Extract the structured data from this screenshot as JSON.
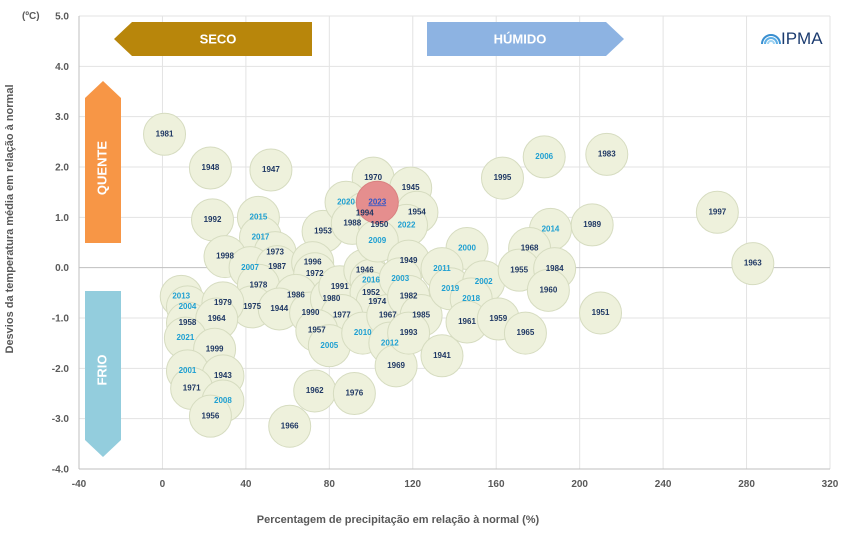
{
  "chart_data": {
    "type": "scatter",
    "xlabel": "Percentagem de precipitação em relação à normal (%)",
    "ylabel": "Desvios da temperatura média em relação à normal",
    "yunit": "(ºC)",
    "xlim": [
      -40,
      320
    ],
    "ylim": [
      -4.0,
      5.0
    ],
    "xticks": [
      "-40",
      "0",
      "40",
      "80",
      "120",
      "160",
      "200",
      "240",
      "280",
      "320"
    ],
    "yticks": [
      "5.0",
      "4.0",
      "3.0",
      "2.0",
      "1.0",
      "0.0",
      "-1.0",
      "-2.0",
      "-3.0",
      "-4.0"
    ],
    "grid": true,
    "colors": {
      "old_label": "#1f3864",
      "recent_label": "#1fa0d2",
      "highlight_label": "#2f55c8",
      "bubble": "#eef1dc",
      "highlight_bubble": "#e58e8e"
    },
    "points": [
      {
        "year": "1981",
        "x": 1,
        "y": 2.65
      },
      {
        "year": "1948",
        "x": 23,
        "y": 1.98
      },
      {
        "year": "1947",
        "x": 52,
        "y": 1.94
      },
      {
        "year": "1992",
        "x": 24,
        "y": 0.95
      },
      {
        "year": "2015",
        "x": 46,
        "y": 1.0
      },
      {
        "year": "2017",
        "x": 47,
        "y": 0.6
      },
      {
        "year": "1998",
        "x": 30,
        "y": 0.22
      },
      {
        "year": "1973",
        "x": 54,
        "y": 0.3
      },
      {
        "year": "2007",
        "x": 42,
        "y": 0.0
      },
      {
        "year": "1987",
        "x": 55,
        "y": 0.02
      },
      {
        "year": "1953",
        "x": 77,
        "y": 0.72
      },
      {
        "year": "1996",
        "x": 72,
        "y": 0.1
      },
      {
        "year": "1972",
        "x": 73,
        "y": -0.12
      },
      {
        "year": "1978",
        "x": 46,
        "y": -0.35
      },
      {
        "year": "1986",
        "x": 64,
        "y": -0.55
      },
      {
        "year": "1975",
        "x": 43,
        "y": -0.78
      },
      {
        "year": "1944",
        "x": 56,
        "y": -0.82
      },
      {
        "year": "1990",
        "x": 71,
        "y": -0.9
      },
      {
        "year": "1980",
        "x": 81,
        "y": -0.62
      },
      {
        "year": "1991",
        "x": 85,
        "y": -0.38
      },
      {
        "year": "1946",
        "x": 97,
        "y": -0.05
      },
      {
        "year": "2016",
        "x": 100,
        "y": -0.25
      },
      {
        "year": "1952",
        "x": 100,
        "y": -0.5
      },
      {
        "year": "1974",
        "x": 103,
        "y": -0.68
      },
      {
        "year": "1977",
        "x": 86,
        "y": -0.95
      },
      {
        "year": "1957",
        "x": 74,
        "y": -1.25
      },
      {
        "year": "2005",
        "x": 80,
        "y": -1.55
      },
      {
        "year": "2010",
        "x": 96,
        "y": -1.3
      },
      {
        "year": "1967",
        "x": 108,
        "y": -0.95
      },
      {
        "year": "2012",
        "x": 109,
        "y": -1.5
      },
      {
        "year": "1969",
        "x": 112,
        "y": -1.95
      },
      {
        "year": "1962",
        "x": 73,
        "y": -2.45
      },
      {
        "year": "1976",
        "x": 92,
        "y": -2.5
      },
      {
        "year": "1966",
        "x": 61,
        "y": -3.15
      },
      {
        "year": "1970",
        "x": 101,
        "y": 1.78
      },
      {
        "year": "1945",
        "x": 119,
        "y": 1.58
      },
      {
        "year": "2020",
        "x": 88,
        "y": 1.3
      },
      {
        "year": "2023",
        "x": 103,
        "y": 1.3
      },
      {
        "year": "1994",
        "x": 97,
        "y": 1.08
      },
      {
        "year": "1954",
        "x": 122,
        "y": 1.1
      },
      {
        "year": "1988",
        "x": 91,
        "y": 0.88
      },
      {
        "year": "1950",
        "x": 104,
        "y": 0.85
      },
      {
        "year": "2022",
        "x": 117,
        "y": 0.84
      },
      {
        "year": "2009",
        "x": 103,
        "y": 0.53
      },
      {
        "year": "1949",
        "x": 118,
        "y": 0.13
      },
      {
        "year": "2003",
        "x": 114,
        "y": -0.22
      },
      {
        "year": "1982",
        "x": 118,
        "y": -0.57
      },
      {
        "year": "1985",
        "x": 124,
        "y": -0.95
      },
      {
        "year": "1993",
        "x": 118,
        "y": -1.3
      },
      {
        "year": "1941",
        "x": 134,
        "y": -1.75
      },
      {
        "year": "2000",
        "x": 146,
        "y": 0.38
      },
      {
        "year": "2011",
        "x": 134,
        "y": -0.02
      },
      {
        "year": "2019",
        "x": 138,
        "y": -0.42
      },
      {
        "year": "2002",
        "x": 154,
        "y": -0.28
      },
      {
        "year": "2018",
        "x": 148,
        "y": -0.62
      },
      {
        "year": "1961",
        "x": 146,
        "y": -1.08
      },
      {
        "year": "1959",
        "x": 161,
        "y": -1.02
      },
      {
        "year": "1965",
        "x": 174,
        "y": -1.3
      },
      {
        "year": "1995",
        "x": 163,
        "y": 1.78
      },
      {
        "year": "2006",
        "x": 183,
        "y": 2.2
      },
      {
        "year": "1983",
        "x": 213,
        "y": 2.25
      },
      {
        "year": "2014",
        "x": 186,
        "y": 0.76
      },
      {
        "year": "1968",
        "x": 176,
        "y": 0.38
      },
      {
        "year": "1955",
        "x": 171,
        "y": -0.05
      },
      {
        "year": "1984",
        "x": 188,
        "y": -0.02
      },
      {
        "year": "1960",
        "x": 185,
        "y": -0.45
      },
      {
        "year": "1989",
        "x": 206,
        "y": 0.85
      },
      {
        "year": "1951",
        "x": 210,
        "y": -0.9
      },
      {
        "year": "1997",
        "x": 266,
        "y": 1.1
      },
      {
        "year": "1963",
        "x": 283,
        "y": 0.08
      },
      {
        "year": "2013",
        "x": 9,
        "y": -0.57
      },
      {
        "year": "2004",
        "x": 12,
        "y": -0.78
      },
      {
        "year": "1958",
        "x": 12,
        "y": -1.1
      },
      {
        "year": "1979",
        "x": 29,
        "y": -0.7
      },
      {
        "year": "1964",
        "x": 26,
        "y": -1.02
      },
      {
        "year": "2021",
        "x": 11,
        "y": -1.4
      },
      {
        "year": "1999",
        "x": 25,
        "y": -1.62
      },
      {
        "year": "2001",
        "x": 12,
        "y": -2.05
      },
      {
        "year": "1943",
        "x": 29,
        "y": -2.15
      },
      {
        "year": "1971",
        "x": 14,
        "y": -2.4
      },
      {
        "year": "2008",
        "x": 29,
        "y": -2.65
      },
      {
        "year": "1956",
        "x": 23,
        "y": -2.95
      }
    ],
    "highlight": "2023",
    "recent_years": [
      "2015",
      "2017",
      "2007",
      "2016",
      "2005",
      "2010",
      "2012",
      "2020",
      "2022",
      "2009",
      "2003",
      "2000",
      "2011",
      "2019",
      "2002",
      "2018",
      "2006",
      "2014",
      "2013",
      "2004",
      "2021",
      "2001",
      "2008"
    ]
  },
  "annotations": {
    "seco": "SECO",
    "humido": "HÚMIDO",
    "quente": "QUENTE",
    "frio": "FRIO",
    "logo": "IPMA",
    "arrow_colors": {
      "seco": "#b8860b",
      "humido": "#8db3e2",
      "quente": "#f79646",
      "frio": "#93cddd"
    }
  }
}
